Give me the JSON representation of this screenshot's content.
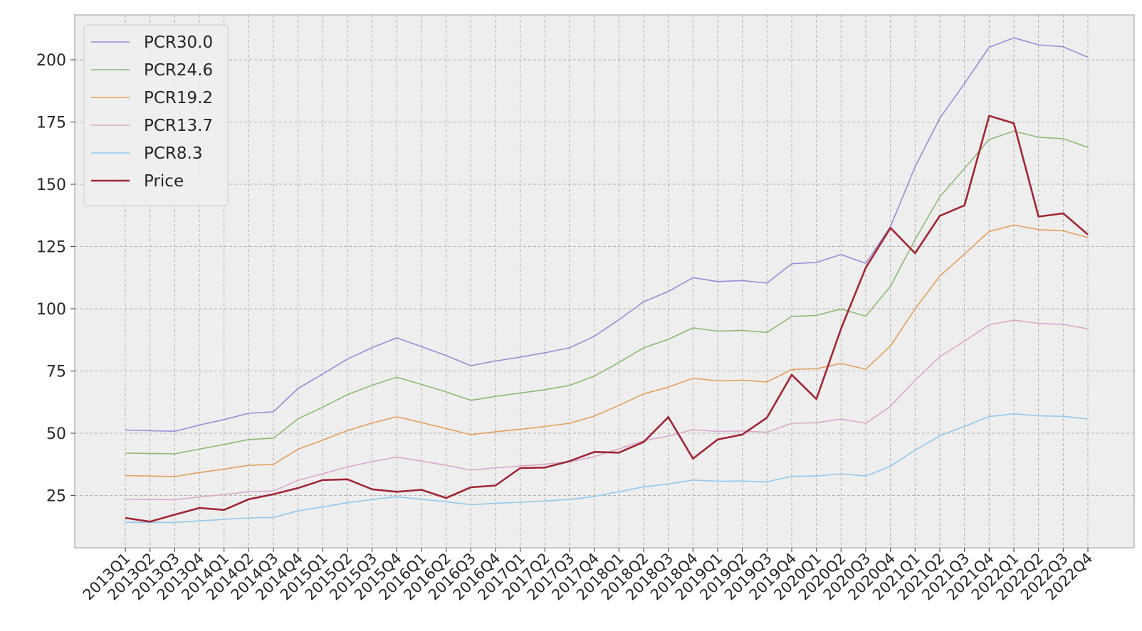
{
  "chart_data": {
    "type": "line",
    "title": "",
    "xlabel": "",
    "ylabel": "",
    "ylim": [
      4,
      218
    ],
    "yticks": [
      25,
      50,
      75,
      100,
      125,
      150,
      175,
      200
    ],
    "grid": true,
    "legend_position": "top-left",
    "categories": [
      "2013Q1",
      "2013Q2",
      "2013Q3",
      "2013Q4",
      "2014Q1",
      "2014Q2",
      "2014Q3",
      "2014Q4",
      "2015Q1",
      "2015Q2",
      "2015Q3",
      "2015Q4",
      "2016Q1",
      "2016Q2",
      "2016Q3",
      "2016Q4",
      "2017Q1",
      "2017Q2",
      "2017Q3",
      "2017Q4",
      "2018Q1",
      "2018Q2",
      "2018Q3",
      "2018Q4",
      "2019Q1",
      "2019Q2",
      "2019Q3",
      "2019Q4",
      "2020Q1",
      "2020Q2",
      "2020Q3",
      "2020Q4",
      "2021Q1",
      "2021Q2",
      "2021Q3",
      "2021Q4",
      "2022Q1",
      "2022Q2",
      "2022Q3",
      "2022Q4"
    ],
    "series": [
      {
        "name": "PCR30.0",
        "color": "#988ed5",
        "width": 1.6,
        "values": [
          51.3,
          51.0,
          50.8,
          53.3,
          55.5,
          58.0,
          58.6,
          68.0,
          73.8,
          79.8,
          84.4,
          88.3,
          84.8,
          81.2,
          77.1,
          79.0,
          80.6,
          82.3,
          84.3,
          88.9,
          95.6,
          102.8,
          106.9,
          112.5,
          110.9,
          111.3,
          110.3,
          118.1,
          118.6,
          121.8,
          118.2,
          133.0,
          157.0,
          176.5,
          190.5,
          205.0,
          208.8,
          206.0,
          205.2,
          201.0
        ]
      },
      {
        "name": "PCR24.6",
        "color": "#8eba74",
        "width": 1.6,
        "values": [
          42.0,
          41.9,
          41.7,
          43.6,
          45.5,
          47.5,
          48.0,
          55.8,
          60.5,
          65.5,
          69.3,
          72.5,
          69.6,
          66.6,
          63.2,
          64.8,
          66.1,
          67.5,
          69.2,
          72.9,
          78.4,
          84.3,
          87.7,
          92.3,
          91.0,
          91.3,
          90.5,
          96.9,
          97.3,
          99.9,
          97.0,
          109.0,
          127.8,
          145.0,
          156.3,
          168.0,
          171.3,
          168.9,
          168.3,
          164.8
        ]
      },
      {
        "name": "PCR19.2",
        "color": "#e2a05f",
        "width": 1.6,
        "values": [
          33.0,
          32.8,
          32.6,
          34.2,
          35.6,
          37.1,
          37.5,
          43.6,
          47.2,
          51.1,
          54.1,
          56.6,
          54.3,
          51.9,
          49.4,
          50.6,
          51.6,
          52.7,
          54.0,
          56.9,
          61.2,
          65.8,
          68.5,
          72.1,
          71.0,
          71.3,
          70.6,
          75.6,
          75.9,
          78.0,
          75.7,
          85.0,
          100.0,
          113.1,
          122.0,
          131.0,
          133.6,
          131.8,
          131.3,
          128.6
        ]
      },
      {
        "name": "PCR13.7",
        "color": "#dba8cb",
        "width": 1.6,
        "values": [
          23.5,
          23.4,
          23.3,
          24.4,
          25.4,
          26.5,
          26.8,
          31.1,
          33.7,
          36.5,
          38.6,
          40.4,
          38.8,
          37.1,
          35.2,
          36.1,
          36.8,
          37.6,
          38.5,
          40.6,
          43.7,
          47.0,
          48.9,
          51.4,
          50.7,
          50.9,
          50.4,
          54.0,
          54.2,
          55.7,
          54.0,
          60.8,
          71.3,
          80.7,
          87.0,
          93.6,
          95.4,
          94.1,
          93.7,
          91.9
        ]
      },
      {
        "name": "PCR8.3",
        "color": "#93c8ec",
        "width": 1.6,
        "values": [
          14.2,
          14.2,
          14.1,
          14.8,
          15.4,
          16.0,
          16.2,
          18.8,
          20.4,
          22.1,
          23.4,
          24.5,
          23.5,
          22.5,
          21.3,
          21.9,
          22.3,
          22.8,
          23.4,
          24.6,
          26.5,
          28.5,
          29.6,
          31.2,
          30.7,
          30.8,
          30.5,
          32.7,
          32.8,
          33.7,
          32.8,
          36.8,
          43.2,
          49.0,
          52.7,
          56.7,
          57.8,
          57.0,
          56.8,
          55.7
        ]
      },
      {
        "name": "Price",
        "color": "#a02734",
        "width": 2.6,
        "values": [
          16.0,
          14.5,
          17.3,
          20.0,
          19.2,
          23.5,
          25.5,
          28.0,
          31.2,
          31.5,
          27.5,
          26.5,
          27.3,
          24.0,
          28.3,
          29.0,
          36.0,
          36.2,
          38.8,
          42.5,
          42.2,
          46.5,
          56.5,
          39.8,
          47.5,
          49.5,
          56.3,
          73.5,
          63.7,
          92.0,
          116.5,
          132.5,
          122.3,
          137.3,
          141.5,
          177.5,
          174.5,
          137.0,
          138.3,
          129.8
        ]
      }
    ]
  }
}
